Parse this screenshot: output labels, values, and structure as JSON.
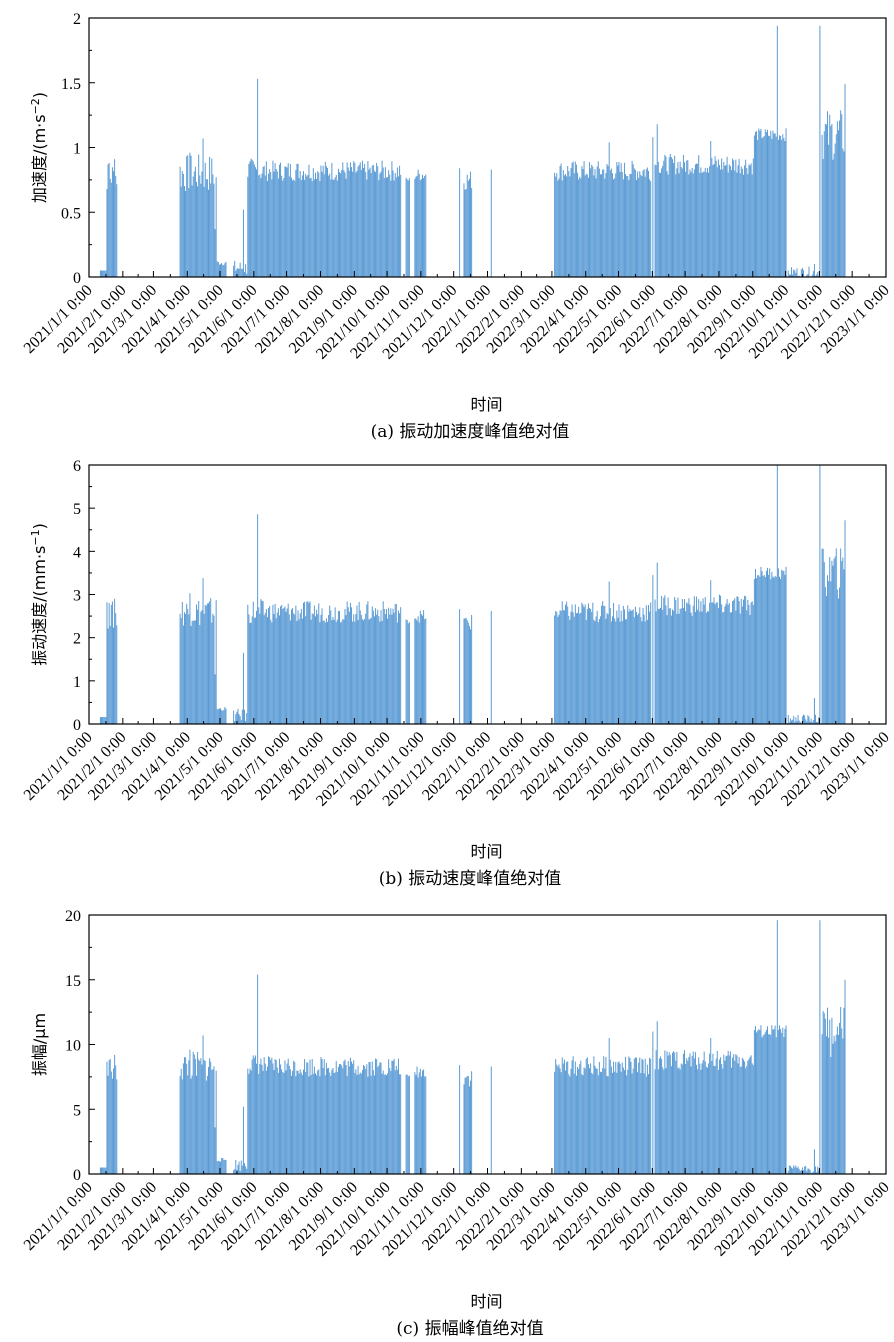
{
  "x_date_range": [
    "2021/1/1 0:00",
    "2023/1/1 0:00"
  ],
  "chart_data": [
    {
      "type": "bar",
      "id": "a",
      "caption": "(a) 振动加速度峰值绝对值",
      "xlabel": "时间",
      "ylabel_main": "加速度/(m·s",
      "ylabel_sup": "−2",
      "ylabel_tail": ")",
      "ylim": [
        0,
        2
      ],
      "yticks": [
        "0",
        "0.5",
        "1",
        "1.5",
        "2"
      ],
      "ytick_values": [
        0,
        0.5,
        1,
        1.5,
        2
      ],
      "xticks": [
        "2021/1/1 0:00",
        "2021/2/1 0:00",
        "2021/3/1 0:00",
        "2021/4/1 0:00",
        "2021/5/1 0:00",
        "2021/6/1 0:00",
        "2021/7/1 0:00",
        "2021/8/1 0:00",
        "2021/9/1 0:00",
        "2021/10/1 0:00",
        "2021/11/1 0:00",
        "2021/12/1 0:00",
        "2022/1/1 0:00",
        "2022/2/1 0:00",
        "2022/3/1 0:00",
        "2022/4/1 0:00",
        "2022/5/1 0:00",
        "2022/6/1 0:00",
        "2022/7/1 0:00",
        "2022/8/1 0:00",
        "2022/9/1 0:00",
        "2022/10/1 0:00",
        "2022/11/1 0:00",
        "2022/12/1 0:00",
        "2023/1/1 0:00"
      ],
      "color": "#5b9bd5",
      "segments": [
        {
          "start": "2021/1/11",
          "end": "2021/1/16",
          "base": 0.05,
          "amp": 0.0
        },
        {
          "start": "2021/1/17",
          "end": "2021/1/26",
          "base": 0.78,
          "amp": 0.12
        },
        {
          "start": "2021/3/25",
          "end": "2021/4/27",
          "base": 0.8,
          "amp": 0.15
        },
        {
          "start": "2021/4/28",
          "end": "2021/5/6",
          "base": 0.11,
          "amp": 0.02
        },
        {
          "start": "2021/5/13",
          "end": "2021/5/25",
          "base": 0.07,
          "amp": 0.06
        },
        {
          "start": "2021/5/26",
          "end": "2021/6/8",
          "base": 0.82,
          "amp": 0.1
        },
        {
          "start": "2021/6/9",
          "end": "2021/10/13",
          "base": 0.82,
          "amp": 0.08
        },
        {
          "start": "2021/10/18",
          "end": "2021/10/21",
          "base": 0.75,
          "amp": 0.02
        },
        {
          "start": "2021/10/26",
          "end": "2021/11/5",
          "base": 0.79,
          "amp": 0.05
        },
        {
          "start": "2021/12/10",
          "end": "2021/12/17",
          "base": 0.75,
          "amp": 0.08
        },
        {
          "start": "2022/3/3",
          "end": "2022/5/30",
          "base": 0.82,
          "amp": 0.08
        },
        {
          "start": "2022/6/3",
          "end": "2022/9/1",
          "base": 0.87,
          "amp": 0.08
        },
        {
          "start": "2022/9/2",
          "end": "2022/10/1",
          "base": 1.1,
          "amp": 0.05
        },
        {
          "start": "2022/10/3",
          "end": "2022/10/31",
          "base": 0.04,
          "amp": 0.04
        },
        {
          "start": "2022/11/3",
          "end": "2022/11/24",
          "base": 1.1,
          "amp": 0.2
        }
      ],
      "spikes": [
        {
          "date": "2021/1/19",
          "value": 0.88
        },
        {
          "date": "2021/1/24",
          "value": 0.91
        },
        {
          "date": "2021/4/3",
          "value": 0.96
        },
        {
          "date": "2021/4/15",
          "value": 1.07
        },
        {
          "date": "2021/4/26",
          "value": 0.37
        },
        {
          "date": "2021/5/22",
          "value": 0.52
        },
        {
          "date": "2021/6/4",
          "value": 1.53
        },
        {
          "date": "2021/12/6",
          "value": 0.84
        },
        {
          "date": "2022/1/4",
          "value": 0.83
        },
        {
          "date": "2022/4/22",
          "value": 1.04
        },
        {
          "date": "2022/6/1",
          "value": 1.08
        },
        {
          "date": "2022/6/5",
          "value": 1.18
        },
        {
          "date": "2022/7/24",
          "value": 1.05
        },
        {
          "date": "2022/9/23",
          "value": 1.94
        },
        {
          "date": "2022/10/27",
          "value": 0.1
        },
        {
          "date": "2022/11/1",
          "value": 1.94
        },
        {
          "date": "2022/11/24",
          "value": 1.49
        }
      ]
    },
    {
      "type": "bar",
      "id": "b",
      "caption": "(b) 振动速度峰值绝对值",
      "xlabel": "时间",
      "ylabel_main": "振动速度/(mm·s",
      "ylabel_sup": "−1",
      "ylabel_tail": ")",
      "ylim": [
        0,
        6
      ],
      "yticks": [
        "0",
        "1",
        "2",
        "3",
        "4",
        "5",
        "6"
      ],
      "ytick_values": [
        0,
        1,
        2,
        3,
        4,
        5,
        6
      ],
      "xticks": [
        "2021/1/1 0:00",
        "2021/2/1 0:00",
        "2021/3/1 0:00",
        "2021/4/1 0:00",
        "2021/5/1 0:00",
        "2021/6/1 0:00",
        "2021/7/1 0:00",
        "2021/8/1 0:00",
        "2021/9/1 0:00",
        "2021/10/1 0:00",
        "2021/11/1 0:00",
        "2021/12/1 0:00",
        "2022/1/1 0:00",
        "2022/2/1 0:00",
        "2022/3/1 0:00",
        "2022/4/1 0:00",
        "2022/5/1 0:00",
        "2022/6/1 0:00",
        "2022/7/1 0:00",
        "2022/8/1 0:00",
        "2022/9/1 0:00",
        "2022/10/1 0:00",
        "2022/11/1 0:00",
        "2022/12/1 0:00",
        "2023/1/1 0:00"
      ],
      "color": "#5b9bd5",
      "segments": [
        {
          "start": "2021/1/11",
          "end": "2021/1/16",
          "base": 0.16,
          "amp": 0.0
        },
        {
          "start": "2021/1/17",
          "end": "2021/1/26",
          "base": 2.5,
          "amp": 0.35
        },
        {
          "start": "2021/3/25",
          "end": "2021/4/27",
          "base": 2.6,
          "amp": 0.35
        },
        {
          "start": "2021/4/28",
          "end": "2021/5/6",
          "base": 0.35,
          "amp": 0.05
        },
        {
          "start": "2021/5/13",
          "end": "2021/5/25",
          "base": 0.2,
          "amp": 0.15
        },
        {
          "start": "2021/5/26",
          "end": "2021/6/8",
          "base": 2.6,
          "amp": 0.3
        },
        {
          "start": "2021/6/9",
          "end": "2021/10/13",
          "base": 2.6,
          "amp": 0.25
        },
        {
          "start": "2021/10/18",
          "end": "2021/10/21",
          "base": 2.38,
          "amp": 0.05
        },
        {
          "start": "2021/10/26",
          "end": "2021/11/5",
          "base": 2.5,
          "amp": 0.15
        },
        {
          "start": "2021/12/10",
          "end": "2021/12/17",
          "base": 2.35,
          "amp": 0.2
        },
        {
          "start": "2022/3/3",
          "end": "2022/5/30",
          "base": 2.6,
          "amp": 0.25
        },
        {
          "start": "2022/6/3",
          "end": "2022/9/1",
          "base": 2.75,
          "amp": 0.25
        },
        {
          "start": "2022/9/2",
          "end": "2022/10/1",
          "base": 3.5,
          "amp": 0.15
        },
        {
          "start": "2022/10/3",
          "end": "2022/10/31",
          "base": 0.12,
          "amp": 0.1
        },
        {
          "start": "2022/11/3",
          "end": "2022/11/24",
          "base": 3.5,
          "amp": 0.6
        }
      ],
      "spikes": [
        {
          "date": "2021/1/19",
          "value": 2.8
        },
        {
          "date": "2021/1/24",
          "value": 2.9
        },
        {
          "date": "2021/4/3",
          "value": 3.03
        },
        {
          "date": "2021/4/15",
          "value": 3.38
        },
        {
          "date": "2021/4/26",
          "value": 1.15
        },
        {
          "date": "2021/5/22",
          "value": 1.65
        },
        {
          "date": "2021/6/4",
          "value": 4.86
        },
        {
          "date": "2021/12/6",
          "value": 2.66
        },
        {
          "date": "2022/1/4",
          "value": 2.62
        },
        {
          "date": "2022/4/22",
          "value": 3.3
        },
        {
          "date": "2022/6/1",
          "value": 3.45
        },
        {
          "date": "2022/6/5",
          "value": 3.74
        },
        {
          "date": "2022/7/24",
          "value": 3.33
        },
        {
          "date": "2022/9/23",
          "value": 6.0
        },
        {
          "date": "2022/10/27",
          "value": 0.6
        },
        {
          "date": "2022/11/1",
          "value": 6.0
        },
        {
          "date": "2022/11/24",
          "value": 4.72
        }
      ]
    },
    {
      "type": "bar",
      "id": "c",
      "caption": "(c) 振幅峰值绝对值",
      "xlabel": "时间",
      "ylabel_main": "振幅/μm",
      "ylabel_sup": "",
      "ylabel_tail": "",
      "ylim": [
        0,
        20
      ],
      "yticks": [
        "0",
        "5",
        "10",
        "15",
        "20"
      ],
      "ytick_values": [
        0,
        5,
        10,
        15,
        20
      ],
      "xticks": [
        "2021/1/1 0:00",
        "2021/2/1 0:00",
        "2021/3/1 0:00",
        "2021/4/1 0:00",
        "2021/5/1 0:00",
        "2021/6/1 0:00",
        "2021/7/1 0:00",
        "2021/8/1 0:00",
        "2021/9/1 0:00",
        "2021/10/1 0:00",
        "2021/11/1 0:00",
        "2021/12/1 0:00",
        "2022/1/1 0:00",
        "2022/2/1 0:00",
        "2022/3/1 0:00",
        "2022/4/1 0:00",
        "2022/5/1 0:00",
        "2022/6/1 0:00",
        "2022/7/1 0:00",
        "2022/8/1 0:00",
        "2022/9/1 0:00",
        "2022/10/1 0:00",
        "2022/11/1 0:00",
        "2022/12/1 0:00",
        "2023/1/1 0:00"
      ],
      "color": "#5b9bd5",
      "segments": [
        {
          "start": "2021/1/11",
          "end": "2021/1/16",
          "base": 0.5,
          "amp": 0.0
        },
        {
          "start": "2021/1/17",
          "end": "2021/1/26",
          "base": 8.0,
          "amp": 1.0
        },
        {
          "start": "2021/3/25",
          "end": "2021/4/27",
          "base": 8.3,
          "amp": 1.2
        },
        {
          "start": "2021/4/28",
          "end": "2021/5/6",
          "base": 1.1,
          "amp": 0.15
        },
        {
          "start": "2021/5/13",
          "end": "2021/5/25",
          "base": 0.7,
          "amp": 0.5
        },
        {
          "start": "2021/5/26",
          "end": "2021/6/8",
          "base": 8.5,
          "amp": 0.8
        },
        {
          "start": "2021/6/9",
          "end": "2021/10/13",
          "base": 8.3,
          "amp": 0.8
        },
        {
          "start": "2021/10/18",
          "end": "2021/10/21",
          "base": 7.5,
          "amp": 0.2
        },
        {
          "start": "2021/10/26",
          "end": "2021/11/5",
          "base": 7.9,
          "amp": 0.5
        },
        {
          "start": "2021/12/10",
          "end": "2021/12/17",
          "base": 7.5,
          "amp": 0.8
        },
        {
          "start": "2022/3/3",
          "end": "2022/5/30",
          "base": 8.3,
          "amp": 0.8
        },
        {
          "start": "2022/6/3",
          "end": "2022/9/1",
          "base": 8.8,
          "amp": 0.8
        },
        {
          "start": "2022/9/2",
          "end": "2022/10/1",
          "base": 11.0,
          "amp": 0.5
        },
        {
          "start": "2022/10/3",
          "end": "2022/10/31",
          "base": 0.4,
          "amp": 0.3
        },
        {
          "start": "2022/11/3",
          "end": "2022/11/24",
          "base": 11.0,
          "amp": 2.0
        }
      ],
      "spikes": [
        {
          "date": "2021/1/19",
          "value": 8.8
        },
        {
          "date": "2021/1/24",
          "value": 9.2
        },
        {
          "date": "2021/4/3",
          "value": 9.6
        },
        {
          "date": "2021/4/15",
          "value": 10.7
        },
        {
          "date": "2021/4/26",
          "value": 3.6
        },
        {
          "date": "2021/5/22",
          "value": 5.2
        },
        {
          "date": "2021/6/4",
          "value": 15.4
        },
        {
          "date": "2021/12/6",
          "value": 8.4
        },
        {
          "date": "2022/1/4",
          "value": 8.3
        },
        {
          "date": "2022/4/22",
          "value": 10.5
        },
        {
          "date": "2022/6/1",
          "value": 11.0
        },
        {
          "date": "2022/6/5",
          "value": 11.8
        },
        {
          "date": "2022/7/24",
          "value": 10.5
        },
        {
          "date": "2022/9/23",
          "value": 19.6
        },
        {
          "date": "2022/10/27",
          "value": 1.9
        },
        {
          "date": "2022/11/1",
          "value": 19.6
        },
        {
          "date": "2022/11/24",
          "value": 15.0
        }
      ]
    }
  ]
}
